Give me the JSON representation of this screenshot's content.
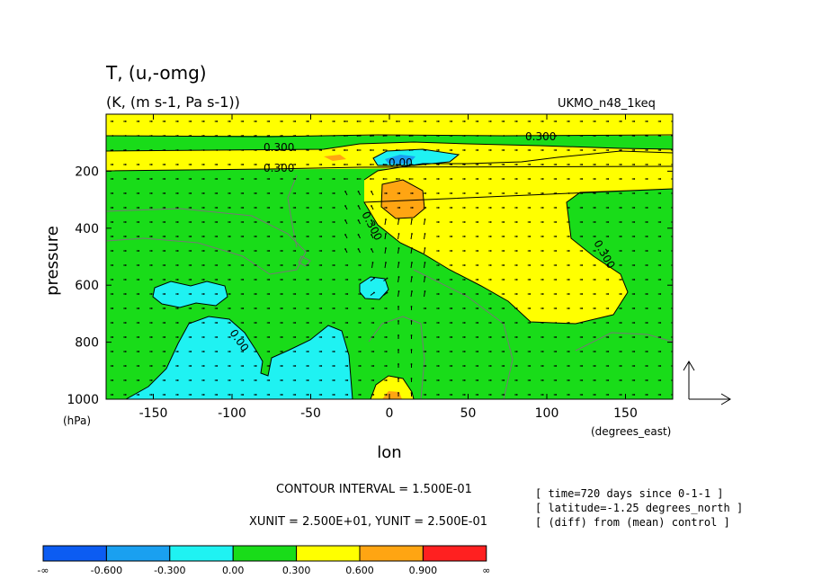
{
  "chart_data": {
    "type": "heatmap",
    "title": "T, (u,-omg)",
    "subtitle": "(K, (m s-1, Pa s-1))",
    "model_label": "UKMO_n48_1keq",
    "xlabel": "lon",
    "ylabel": "pressure",
    "x_unit": "(degrees_east)",
    "y_unit": "(hPa)",
    "xlim": [
      -180,
      180
    ],
    "ylim": [
      1000,
      0
    ],
    "x_ticks": [
      -150,
      -100,
      -50,
      0,
      50,
      100,
      150
    ],
    "y_ticks": [
      200,
      400,
      600,
      800,
      1000
    ],
    "contour_interval_text": "CONTOUR INTERVAL = 1.500E-01",
    "vector_units_text": "XUNIT = 2.500E+01, YUNIT = 2.500E-01",
    "info_lines": [
      "[ time=720 days since 0-1-1 ]",
      "[ latitude=-1.25 degrees_north ]",
      "[ (diff) from (mean) control ]"
    ],
    "contour_labels": [
      "0.300",
      "0.300",
      "0.300",
      "0.00",
      "0.300",
      "0.300",
      "0.00"
    ],
    "colorbar": {
      "labels": [
        "-∞",
        "-0.600",
        "-0.300",
        "0.00",
        "0.300",
        "0.600",
        "0.900",
        "∞"
      ],
      "colors": [
        "#0c5cf2",
        "#1aa0f0",
        "#1ff2f2",
        "#19dc19",
        "#ffff00",
        "#ffa512",
        "#ff2020"
      ]
    },
    "colors": {
      "green": "#19dc19",
      "yellow": "#ffff00",
      "cyan": "#1ff2f2",
      "mid_blue": "#1aa0f0",
      "orange": "#ffa512"
    }
  }
}
